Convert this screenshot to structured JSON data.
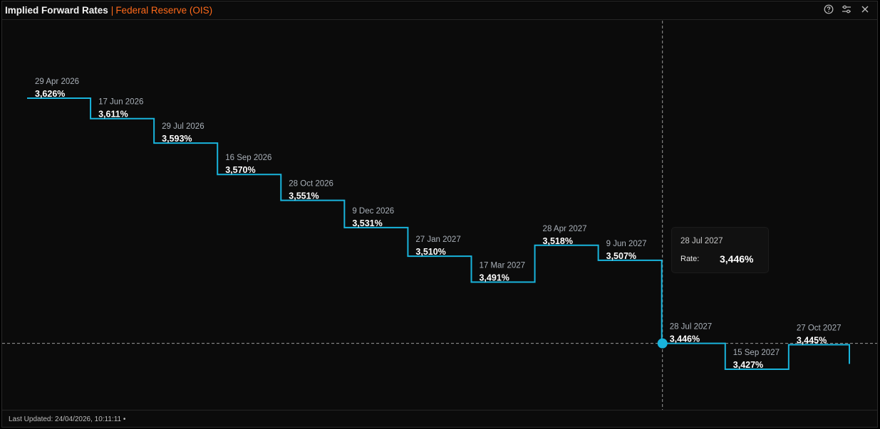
{
  "header": {
    "title": "Implied Forward Rates",
    "separator": "|",
    "subtitle": "Federal Reserve (OIS)",
    "icons": [
      "help-icon",
      "settings-sliders-icon",
      "close-icon"
    ]
  },
  "footer": {
    "last_updated": "Last Updated: 24/04/2026, 10:11:11 •"
  },
  "colors": {
    "accent": "#ff6a1a",
    "line": "#19b4dc",
    "background": "#0b0b0b"
  },
  "tooltip": {
    "date": "28 Jul 2027",
    "label": "Rate:",
    "value": "3,446%"
  },
  "chart_data": {
    "type": "line",
    "step": true,
    "grid": false,
    "ylim": [
      3.4,
      3.65
    ],
    "crosshair": {
      "x": "28 Jul 2027",
      "y": 3.446
    },
    "highlighted_point": "28 Jul 2027",
    "points": [
      {
        "date": "29 Apr 2026",
        "value": 3.626,
        "label": "3,626%"
      },
      {
        "date": "17 Jun 2026",
        "value": 3.611,
        "label": "3,611%"
      },
      {
        "date": "29 Jul 2026",
        "value": 3.593,
        "label": "3,593%"
      },
      {
        "date": "16 Sep 2026",
        "value": 3.57,
        "label": "3,570%"
      },
      {
        "date": "28 Oct 2026",
        "value": 3.551,
        "label": "3,551%"
      },
      {
        "date": "9 Dec 2026",
        "value": 3.531,
        "label": "3,531%"
      },
      {
        "date": "27 Jan 2027",
        "value": 3.51,
        "label": "3,510%"
      },
      {
        "date": "17 Mar 2027",
        "value": 3.491,
        "label": "3,491%"
      },
      {
        "date": "28 Apr 2027",
        "value": 3.518,
        "label": "3,518%"
      },
      {
        "date": "9 Jun 2027",
        "value": 3.507,
        "label": "3,507%"
      },
      {
        "date": "28 Jul 2027",
        "value": 3.446,
        "label": "3,446%"
      },
      {
        "date": "15 Sep 2027",
        "value": 3.427,
        "label": "3,427%"
      },
      {
        "date": "27 Oct 2027",
        "value": 3.445,
        "label": "3,445%"
      }
    ]
  }
}
